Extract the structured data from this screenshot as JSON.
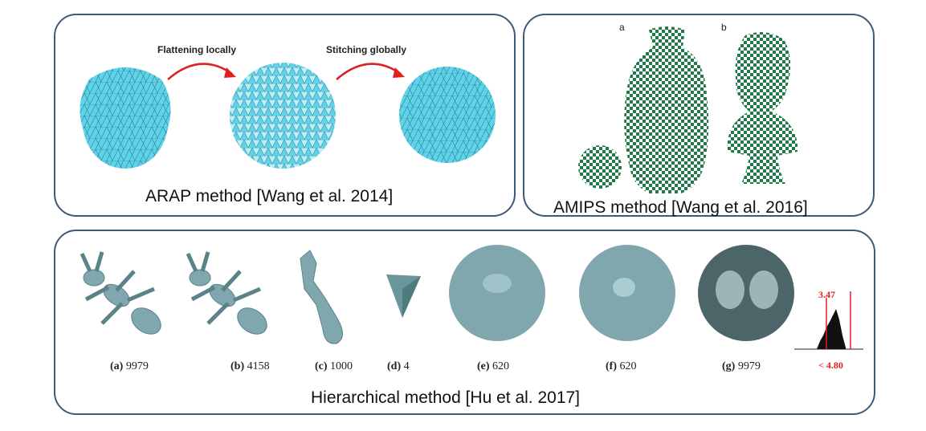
{
  "arap": {
    "caption": "ARAP method [Wang et al. 2014]",
    "step1": "Flattening locally",
    "step2": "Stitching globally"
  },
  "amips": {
    "caption": "AMIPS method [Wang et al. 2016]",
    "label_a": "a",
    "label_b": "b"
  },
  "hierarchical": {
    "caption": "Hierarchical method [Hu et al. 2017]",
    "items": [
      {
        "tag": "(a)",
        "value": "9979"
      },
      {
        "tag": "(b)",
        "value": "4158"
      },
      {
        "tag": "(c)",
        "value": "1000"
      },
      {
        "tag": "(d)",
        "value": "4"
      },
      {
        "tag": "(e)",
        "value": "620"
      },
      {
        "tag": "(f)",
        "value": "620"
      },
      {
        "tag": "(g)",
        "value": "9979"
      }
    ],
    "histogram": {
      "marker1": "3.47",
      "marker2": "< 4.80"
    }
  },
  "colors": {
    "border": "#3e5a7a",
    "mesh_fill": "#5fd3e8",
    "arrow": "#e02020",
    "checker_green": "#1f7a4a",
    "model_gray": "#7fa7ad"
  }
}
